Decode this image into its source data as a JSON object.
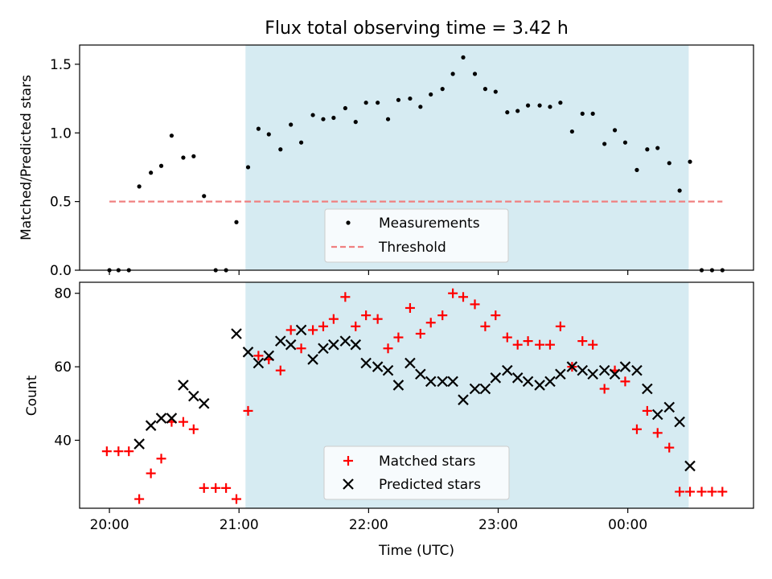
{
  "chart_data": [
    {
      "type": "scatter",
      "title": "Flux total observing time = 3.42 h",
      "ylabel": "Matched/Predicted stars",
      "xlabel": "",
      "xlim": [
        -0.23,
        4.97
      ],
      "ylim": [
        0,
        1.64
      ],
      "yticks": [
        0.0,
        0.5,
        1.0,
        1.5
      ],
      "ytick_labels": [
        "0.0",
        "0.5",
        "1.0",
        "1.5"
      ],
      "highlight_span": [
        1.05,
        4.47
      ],
      "legend_position": "bottom-center",
      "series": [
        {
          "name": "Measurements",
          "kind": "point",
          "color": "#000000",
          "x": [
            0.0,
            0.07,
            0.15,
            0.23,
            0.32,
            0.4,
            0.48,
            0.57,
            0.65,
            0.73,
            0.82,
            0.9,
            0.98,
            1.07,
            1.15,
            1.23,
            1.32,
            1.4,
            1.48,
            1.57,
            1.65,
            1.73,
            1.82,
            1.9,
            1.98,
            2.07,
            2.15,
            2.23,
            2.32,
            2.4,
            2.48,
            2.57,
            2.65,
            2.73,
            2.82,
            2.9,
            2.98,
            3.07,
            3.15,
            3.23,
            3.32,
            3.4,
            3.48,
            3.57,
            3.65,
            3.73,
            3.82,
            3.9,
            3.98,
            4.07,
            4.15,
            4.23,
            4.32,
            4.4,
            4.48,
            4.57,
            4.65,
            4.73
          ],
          "y": [
            0.0,
            0.0,
            0.0,
            0.61,
            0.71,
            0.76,
            0.98,
            0.82,
            0.83,
            0.54,
            0.0,
            0.0,
            0.35,
            0.75,
            1.03,
            0.99,
            0.88,
            1.06,
            0.93,
            1.13,
            1.1,
            1.11,
            1.18,
            1.08,
            1.22,
            1.22,
            1.1,
            1.24,
            1.25,
            1.19,
            1.28,
            1.32,
            1.43,
            1.55,
            1.43,
            1.32,
            1.3,
            1.15,
            1.16,
            1.2,
            1.2,
            1.19,
            1.22,
            1.01,
            1.14,
            1.14,
            0.92,
            1.02,
            0.93,
            0.73,
            0.88,
            0.89,
            0.78,
            0.58,
            0.79,
            0.0,
            0.0,
            0.0
          ]
        },
        {
          "name": "Threshold",
          "kind": "dashed-line",
          "color": "#f08080",
          "x": [
            0.0,
            4.73
          ],
          "y": [
            0.5,
            0.5
          ]
        }
      ]
    },
    {
      "type": "scatter",
      "title": "",
      "ylabel": "Count",
      "xlabel": "Time (UTC)",
      "xlim": [
        -0.23,
        4.97
      ],
      "ylim": [
        21.5,
        83
      ],
      "yticks": [
        40,
        60,
        80
      ],
      "ytick_labels": [
        "40",
        "60",
        "80"
      ],
      "xticks": [
        0,
        1,
        2,
        3,
        4
      ],
      "xtick_labels": [
        "20:00",
        "21:00",
        "22:00",
        "23:00",
        "00:00"
      ],
      "highlight_span": [
        1.05,
        4.47
      ],
      "legend_position": "bottom-center",
      "series": [
        {
          "name": "Matched stars",
          "kind": "plus",
          "color": "#ff0000",
          "x": [
            -0.02,
            0.07,
            0.15,
            0.23,
            0.32,
            0.4,
            0.48,
            0.57,
            0.65,
            0.73,
            0.82,
            0.9,
            0.98,
            1.07,
            1.15,
            1.23,
            1.32,
            1.4,
            1.48,
            1.57,
            1.65,
            1.73,
            1.82,
            1.9,
            1.98,
            2.07,
            2.15,
            2.23,
            2.32,
            2.4,
            2.48,
            2.57,
            2.65,
            2.73,
            2.82,
            2.9,
            2.98,
            3.07,
            3.15,
            3.23,
            3.32,
            3.4,
            3.48,
            3.57,
            3.65,
            3.73,
            3.82,
            3.9,
            3.98,
            4.07,
            4.15,
            4.23,
            4.32,
            4.4,
            4.48,
            4.57,
            4.65,
            4.73
          ],
          "y": [
            37,
            37,
            37,
            24,
            31,
            35,
            45,
            45,
            43,
            27,
            27,
            27,
            24,
            48,
            63,
            62,
            59,
            70,
            65,
            70,
            71,
            73,
            79,
            71,
            74,
            73,
            65,
            68,
            76,
            69,
            72,
            74,
            80,
            79,
            77,
            71,
            74,
            68,
            66,
            67,
            66,
            66,
            71,
            60,
            67,
            66,
            54,
            59,
            56,
            43,
            48,
            42,
            38,
            26,
            26,
            26,
            26,
            26
          ]
        },
        {
          "name": "Predicted stars",
          "kind": "x",
          "color": "#000000",
          "x": [
            0.23,
            0.32,
            0.4,
            0.48,
            0.57,
            0.65,
            0.73,
            0.98,
            1.07,
            1.15,
            1.23,
            1.32,
            1.4,
            1.48,
            1.57,
            1.65,
            1.73,
            1.82,
            1.9,
            1.98,
            2.07,
            2.15,
            2.23,
            2.32,
            2.4,
            2.48,
            2.57,
            2.65,
            2.73,
            2.82,
            2.9,
            2.98,
            3.07,
            3.15,
            3.23,
            3.32,
            3.4,
            3.48,
            3.57,
            3.65,
            3.73,
            3.82,
            3.9,
            3.98,
            4.07,
            4.15,
            4.23,
            4.32,
            4.4,
            4.48
          ],
          "y": [
            39,
            44,
            46,
            46,
            55,
            52,
            50,
            69,
            64,
            61,
            63,
            67,
            66,
            70,
            62,
            65,
            66,
            67,
            66,
            61,
            60,
            59,
            55,
            61,
            58,
            56,
            56,
            56,
            51,
            54,
            54,
            57,
            59,
            57,
            56,
            55,
            56,
            58,
            60,
            59,
            58,
            59,
            58,
            60,
            59,
            54,
            47,
            49,
            45,
            33
          ]
        }
      ]
    }
  ]
}
